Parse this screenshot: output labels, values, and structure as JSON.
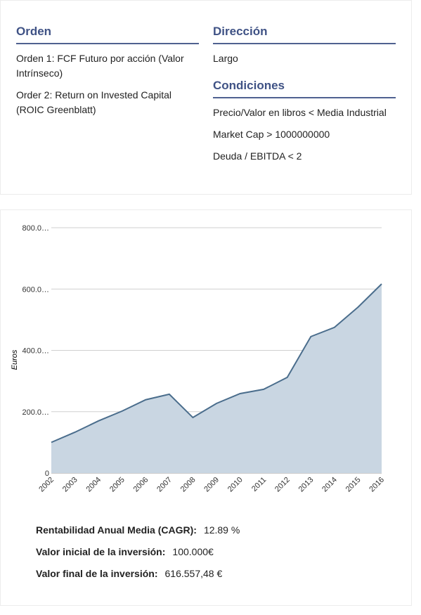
{
  "orden": {
    "title": "Orden",
    "items": [
      "Orden 1: FCF Futuro por acción (Valor Intrínseco)",
      "Order 2: Return on Invested Capital (ROIC Greenblatt)"
    ]
  },
  "direccion": {
    "title": "Dirección",
    "value": "Largo"
  },
  "condiciones": {
    "title": "Condiciones",
    "items": [
      "Precio/Valor en libros < Media Industrial",
      "Market Cap > 1000000000",
      "Deuda / EBITDA < 2"
    ]
  },
  "chart_data": {
    "type": "area",
    "y_label": "Euros",
    "categories": [
      "2002",
      "2003",
      "2004",
      "2005",
      "2006",
      "2007",
      "2008",
      "2009",
      "2010",
      "2011",
      "2012",
      "2013",
      "2014",
      "2015",
      "2016"
    ],
    "values": [
      100,
      133,
      170,
      202,
      239,
      257,
      181,
      227,
      259,
      273,
      312,
      445,
      475,
      541,
      616.56
    ],
    "color": "#4a6d8c",
    "fill": "#c9d6e2",
    "ylim": [
      0,
      800
    ],
    "yticks": [
      0,
      {
        "value": 200,
        "label": "200.0…"
      },
      {
        "value": 400,
        "label": "400.0…"
      },
      {
        "value": 600,
        "label": "600.0…"
      },
      {
        "value": 800,
        "label": "800.0…"
      }
    ],
    "grid": true
  },
  "stats": [
    {
      "label": "Rentabilidad Anual Media (CAGR):",
      "value": "12.89 %"
    },
    {
      "label": "Valor inicial de la inversión:",
      "value": "100.000€"
    },
    {
      "label": "Valor final de la inversión:",
      "value": "616.557,48 €"
    }
  ]
}
